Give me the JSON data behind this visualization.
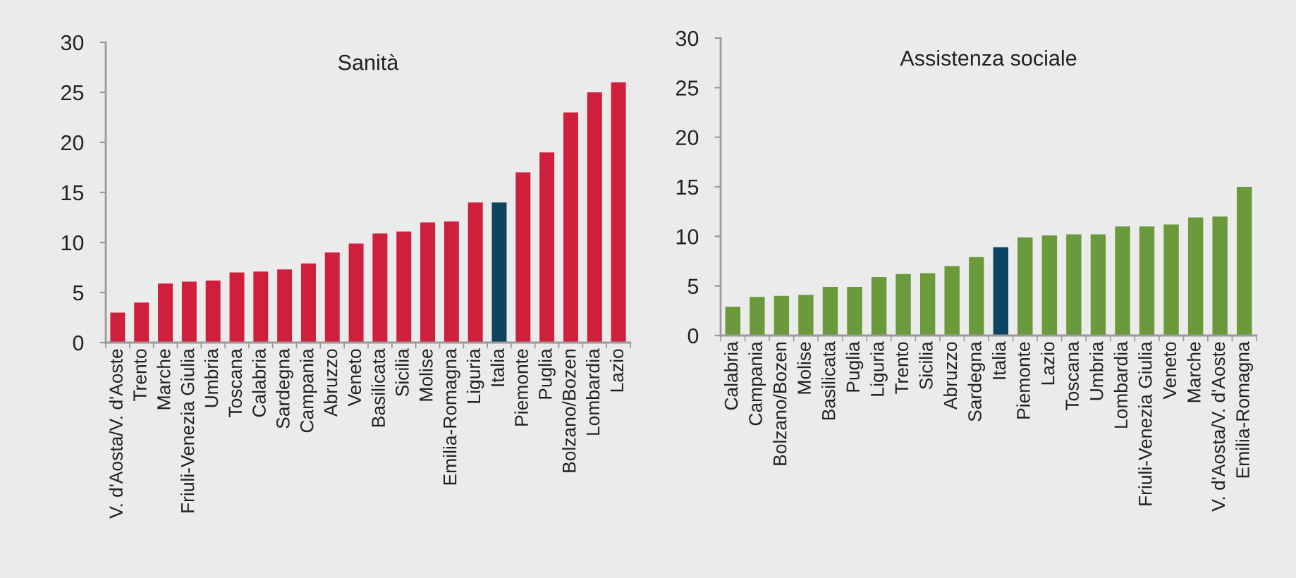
{
  "chart_data": [
    {
      "type": "bar",
      "title": "Sanità",
      "categories": [
        "V. d'Aosta/V. d'Aoste",
        "Trento",
        "Marche",
        "Friuli-Venezia Giulia",
        "Umbria",
        "Toscana",
        "Calabria",
        "Sardegna",
        "Campania",
        "Abruzzo",
        "Veneto",
        "Basilicata",
        "Sicilia",
        "Molise",
        "Emilia-Romagna",
        "Liguria",
        "Italia",
        "Piemonte",
        "Puglia",
        "Bolzano/Bozen",
        "Lombardia",
        "Lazio"
      ],
      "values": [
        3.0,
        4.0,
        5.9,
        6.1,
        6.2,
        7.0,
        7.1,
        7.3,
        7.9,
        9.0,
        9.9,
        10.9,
        11.1,
        12.0,
        12.1,
        14.0,
        14.0,
        17.0,
        19.0,
        23.0,
        25.0,
        26.0
      ],
      "colors": [
        "#d01f3c",
        "#d01f3c",
        "#d01f3c",
        "#d01f3c",
        "#d01f3c",
        "#d01f3c",
        "#d01f3c",
        "#d01f3c",
        "#d01f3c",
        "#d01f3c",
        "#d01f3c",
        "#d01f3c",
        "#d01f3c",
        "#d01f3c",
        "#d01f3c",
        "#d01f3c",
        "#0e4360",
        "#d01f3c",
        "#d01f3c",
        "#d01f3c",
        "#d01f3c",
        "#d01f3c"
      ],
      "ylim": [
        0,
        30
      ],
      "yticks": [
        0,
        5,
        10,
        15,
        20,
        25,
        30
      ]
    },
    {
      "type": "bar",
      "title": "Assistenza sociale",
      "categories": [
        "Calabria",
        "Campania",
        "Bolzano/Bozen",
        "Molise",
        "Basilicata",
        "Puglia",
        "Liguria",
        "Trento",
        "Sicilia",
        "Abruzzo",
        "Sardegna",
        "Italia",
        "Piemonte",
        "Lazio",
        "Toscana",
        "Umbria",
        "Lombardia",
        "Friuli-Venezia Giulia",
        "Veneto",
        "Marche",
        "V. d'Aosta/V. d'Aoste",
        "Emilia-Romagna"
      ],
      "values": [
        2.9,
        3.9,
        4.0,
        4.1,
        4.9,
        4.9,
        5.9,
        6.2,
        6.3,
        7.0,
        7.9,
        8.9,
        9.9,
        10.1,
        10.2,
        10.2,
        11.0,
        11.0,
        11.2,
        11.9,
        12.0,
        15.0
      ],
      "colors": [
        "#6a9a3c",
        "#6a9a3c",
        "#6a9a3c",
        "#6a9a3c",
        "#6a9a3c",
        "#6a9a3c",
        "#6a9a3c",
        "#6a9a3c",
        "#6a9a3c",
        "#6a9a3c",
        "#6a9a3c",
        "#0e4360",
        "#6a9a3c",
        "#6a9a3c",
        "#6a9a3c",
        "#6a9a3c",
        "#6a9a3c",
        "#6a9a3c",
        "#6a9a3c",
        "#6a9a3c",
        "#6a9a3c",
        "#6a9a3c"
      ],
      "ylim": [
        0,
        30
      ],
      "yticks": [
        0,
        5,
        10,
        15,
        20,
        25,
        30
      ]
    }
  ]
}
